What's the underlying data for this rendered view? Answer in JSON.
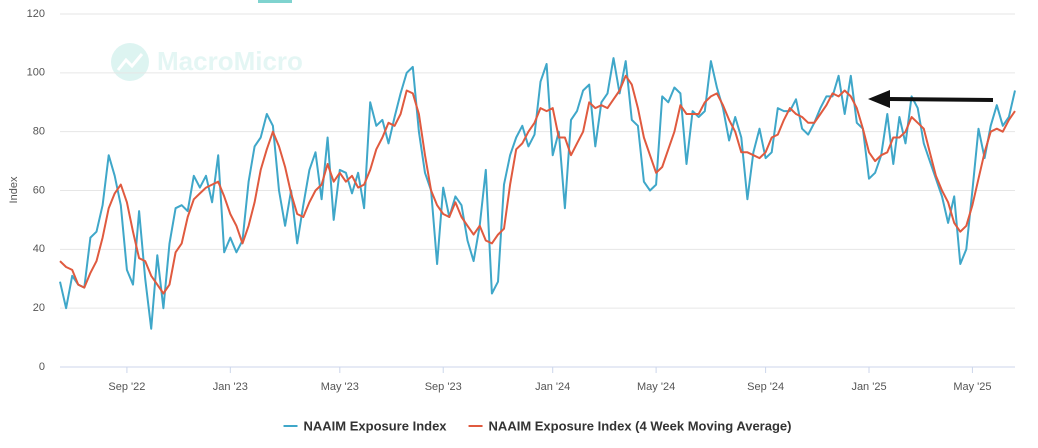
{
  "chart_data": {
    "type": "line",
    "watermark": "MacroMicro",
    "y_label": "Index",
    "ylim": [
      0,
      120
    ],
    "yticks": [
      0,
      20,
      40,
      60,
      80,
      100,
      120
    ],
    "grid": true,
    "categories": [
      null,
      null,
      null,
      null,
      null,
      null,
      null,
      null,
      null,
      null,
      null,
      "Sep '22",
      null,
      null,
      null,
      null,
      null,
      null,
      null,
      null,
      null,
      null,
      null,
      null,
      null,
      null,
      null,
      null,
      "Jan '23",
      null,
      null,
      null,
      null,
      null,
      null,
      null,
      null,
      null,
      null,
      null,
      null,
      null,
      null,
      null,
      null,
      null,
      "May '23",
      null,
      null,
      null,
      null,
      null,
      null,
      null,
      null,
      null,
      null,
      null,
      null,
      null,
      null,
      null,
      null,
      "Sep '23",
      null,
      null,
      null,
      null,
      null,
      null,
      null,
      null,
      null,
      null,
      null,
      null,
      null,
      null,
      null,
      null,
      null,
      "Jan '24",
      null,
      null,
      null,
      null,
      null,
      null,
      null,
      null,
      null,
      null,
      null,
      null,
      null,
      null,
      null,
      null,
      "May '24",
      null,
      null,
      null,
      null,
      null,
      null,
      null,
      null,
      null,
      null,
      null,
      null,
      null,
      null,
      null,
      null,
      null,
      "Sep '24",
      null,
      null,
      null,
      null,
      null,
      null,
      null,
      null,
      null,
      null,
      null,
      null,
      null,
      null,
      null,
      null,
      "Jan '25",
      null,
      null,
      null,
      null,
      null,
      null,
      null,
      null,
      null,
      null,
      null,
      null,
      null,
      null,
      null,
      null,
      "May '25",
      null,
      null,
      null,
      null,
      null,
      null,
      null
    ],
    "legend": "bottom",
    "series": [
      {
        "name": "NAAIM Exposure Index",
        "color": "#3fa7c9",
        "values": [
          29,
          20,
          31,
          28,
          27,
          44,
          46,
          55,
          72,
          65,
          55,
          33,
          28,
          53,
          30,
          13,
          38,
          20,
          42,
          54,
          55,
          53,
          65,
          61,
          65,
          56,
          72,
          39,
          44,
          39,
          43,
          63,
          75,
          78,
          86,
          82,
          60,
          48,
          60,
          42,
          55,
          67,
          73,
          57,
          78,
          50,
          67,
          66,
          59,
          66,
          54,
          90,
          82,
          84,
          76,
          85,
          93,
          100,
          102,
          80,
          66,
          60,
          35,
          61,
          51,
          58,
          55,
          43,
          36,
          48,
          67,
          25,
          29,
          62,
          72,
          78,
          82,
          75,
          79,
          97,
          103,
          72,
          80,
          54,
          84,
          87,
          94,
          96,
          75,
          90,
          93,
          105,
          93,
          104,
          84,
          82,
          63,
          60,
          62,
          92,
          90,
          95,
          93,
          69,
          87,
          85,
          87,
          104,
          95,
          88,
          77,
          85,
          78,
          57,
          73,
          81,
          71,
          73,
          88,
          87,
          87,
          91,
          81,
          79,
          83,
          88,
          92,
          92,
          99,
          86,
          99,
          83,
          81,
          64,
          66,
          72,
          86,
          69,
          85,
          76,
          92,
          88,
          76,
          70,
          64,
          58,
          49,
          58,
          35,
          40,
          60,
          81,
          71,
          82,
          89,
          82,
          85,
          94
        ]
      },
      {
        "name": "NAAIM Exposure Index (4 Week Moving Average)",
        "color": "#e05a3f",
        "values": [
          36,
          34,
          33,
          28,
          27,
          32,
          36,
          44,
          54,
          59,
          62,
          56,
          46,
          37,
          36,
          31,
          28,
          25,
          28,
          39,
          42,
          51,
          57,
          59,
          61,
          62,
          63,
          58,
          52,
          48,
          42,
          48,
          56,
          67,
          74,
          80,
          75,
          68,
          59,
          52,
          51,
          56,
          60,
          62,
          69,
          63,
          66,
          63,
          65,
          61,
          62,
          67,
          74,
          78,
          83,
          82,
          86,
          94,
          93,
          86,
          72,
          60,
          55,
          52,
          51,
          56,
          51,
          48,
          45,
          48,
          43,
          42,
          45,
          47,
          62,
          74,
          76,
          80,
          83,
          88,
          87,
          88,
          78,
          78,
          72,
          76,
          80,
          90,
          88,
          89,
          88,
          91,
          94,
          99,
          96,
          88,
          78,
          72,
          66,
          68,
          74,
          80,
          89,
          86,
          86,
          86,
          90,
          92,
          93,
          89,
          84,
          80,
          73,
          73,
          72,
          71,
          73,
          78,
          79,
          84,
          88,
          86,
          85,
          83,
          83,
          86,
          89,
          93,
          92,
          94,
          92,
          88,
          81,
          73,
          70,
          72,
          73,
          78,
          78,
          80,
          85,
          83,
          81,
          73,
          65,
          60,
          56,
          49,
          46,
          48,
          55,
          64,
          73,
          80,
          81,
          80,
          84,
          87
        ]
      }
    ]
  }
}
